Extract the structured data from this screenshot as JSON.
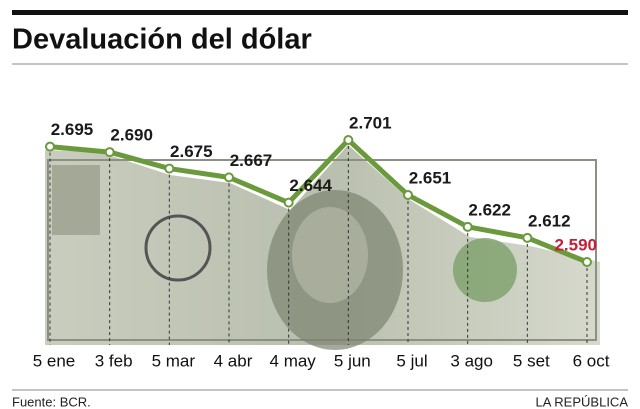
{
  "chart_data": {
    "type": "line",
    "title": "Devaluación del dólar",
    "categories": [
      "5 ene",
      "3 feb",
      "5 mar",
      "4 abr",
      "4 may",
      "5 jun",
      "5 jul",
      "3 ago",
      "5 set",
      "6 oct"
    ],
    "values": [
      2.695,
      2.69,
      2.675,
      2.667,
      2.644,
      2.701,
      2.651,
      2.622,
      2.612,
      2.59
    ],
    "value_labels": [
      "2.695",
      "2.690",
      "2.675",
      "2.667",
      "2.644",
      "2.701",
      "2.651",
      "2.622",
      "2.612",
      "2.590"
    ],
    "color": "#6b9a3c",
    "label_color": "#1a1a1a",
    "highlight_color": "#c41e3a",
    "source": "Fuente: BCR.",
    "credit": "LA REPÚBLICA"
  }
}
